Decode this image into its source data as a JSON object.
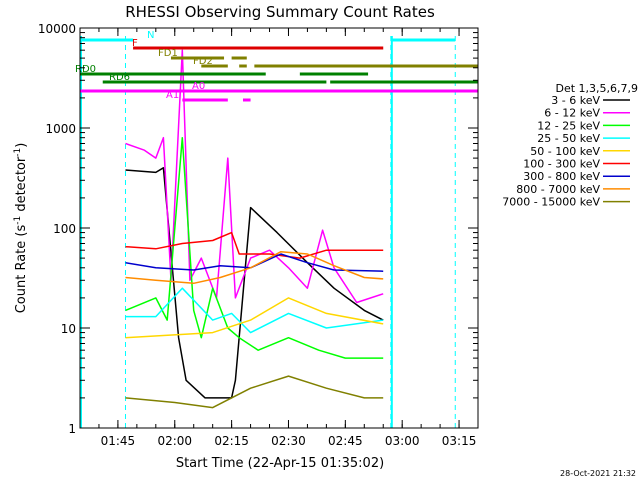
{
  "chart_data": {
    "type": "line",
    "title": "RHESSI Observing Summary Count Rates",
    "xlabel": "Start Time (22-Apr-15 01:35:02)",
    "ylabel_main": "Count Rate (s",
    "ylabel_sup1": "-1",
    "ylabel_mid": " detector",
    "ylabel_sup2": "-1",
    "ylabel_end": ")",
    "y_scale": "log",
    "ylim": [
      1,
      10000
    ],
    "xlim": [
      "01:35",
      "03:20"
    ],
    "x_ticks": [
      "01:45",
      "02:00",
      "02:15",
      "02:30",
      "02:45",
      "03:00",
      "03:15"
    ],
    "y_ticks": [
      "1",
      "10",
      "100",
      "1000",
      "10000"
    ],
    "legend_title": "Det 1,3,5,6,7,9",
    "legend_position": "right",
    "timestamp": "28-Oct-2021 21:32",
    "series": [
      {
        "name": "3 - 6 keV",
        "color": "#000000",
        "points": [
          [
            "01:47",
            "380"
          ],
          [
            "01:55",
            "360"
          ],
          [
            "01:57",
            "400"
          ],
          [
            "02:01",
            "8"
          ],
          [
            "02:03",
            "3"
          ],
          [
            "02:08",
            "2"
          ],
          [
            "02:15",
            "2"
          ],
          [
            "02:16",
            "3"
          ],
          [
            "02:20",
            "160"
          ],
          [
            "02:27",
            "90"
          ],
          [
            "02:35",
            "45"
          ],
          [
            "02:42",
            "25"
          ],
          [
            "02:50",
            "15"
          ],
          [
            "02:55",
            "12"
          ]
        ]
      },
      {
        "name": "6 - 12 keV",
        "color": "#ff00ff",
        "points": [
          [
            "01:47",
            "700"
          ],
          [
            "01:52",
            "600"
          ],
          [
            "01:55",
            "500"
          ],
          [
            "01:57",
            "800"
          ],
          [
            "01:59",
            "30"
          ],
          [
            "02:02",
            "6000"
          ],
          [
            "02:04",
            "30"
          ],
          [
            "02:07",
            "50"
          ],
          [
            "02:11",
            "20"
          ],
          [
            "02:14",
            "500"
          ],
          [
            "02:16",
            "20"
          ],
          [
            "02:20",
            "50"
          ],
          [
            "02:25",
            "60"
          ],
          [
            "02:30",
            "40"
          ],
          [
            "02:35",
            "25"
          ],
          [
            "02:39",
            "95"
          ],
          [
            "02:42",
            "40"
          ],
          [
            "02:48",
            "18"
          ],
          [
            "02:55",
            "22"
          ]
        ]
      },
      {
        "name": "12 - 25 keV",
        "color": "#00ff00",
        "points": [
          [
            "01:47",
            "15"
          ],
          [
            "01:55",
            "20"
          ],
          [
            "01:58",
            "12"
          ],
          [
            "02:02",
            "800"
          ],
          [
            "02:05",
            "15"
          ],
          [
            "02:07",
            "8"
          ],
          [
            "02:10",
            "25"
          ],
          [
            "02:14",
            "10"
          ],
          [
            "02:17",
            "8"
          ],
          [
            "02:22",
            "6"
          ],
          [
            "02:30",
            "8"
          ],
          [
            "02:38",
            "6"
          ],
          [
            "02:45",
            "5"
          ],
          [
            "02:55",
            "5"
          ]
        ]
      },
      {
        "name": "25 - 50 keV",
        "color": "#00ffff",
        "points": [
          [
            "01:47",
            "13"
          ],
          [
            "01:55",
            "13"
          ],
          [
            "02:02",
            "25"
          ],
          [
            "02:10",
            "12"
          ],
          [
            "02:15",
            "14"
          ],
          [
            "02:20",
            "9"
          ],
          [
            "02:30",
            "14"
          ],
          [
            "02:40",
            "10"
          ],
          [
            "02:55",
            "12"
          ]
        ]
      },
      {
        "name": "50 - 100 keV",
        "color": "#ffd700",
        "points": [
          [
            "01:47",
            "8"
          ],
          [
            "02:10",
            "9"
          ],
          [
            "02:20",
            "12"
          ],
          [
            "02:30",
            "20"
          ],
          [
            "02:40",
            "14"
          ],
          [
            "02:55",
            "11"
          ]
        ]
      },
      {
        "name": "100 - 300 keV",
        "color": "#ff0000",
        "points": [
          [
            "01:47",
            "65"
          ],
          [
            "01:55",
            "62"
          ],
          [
            "02:02",
            "70"
          ],
          [
            "02:10",
            "75"
          ],
          [
            "02:15",
            "90"
          ],
          [
            "02:17",
            "55"
          ],
          [
            "02:25",
            "55"
          ],
          [
            "02:33",
            "50"
          ],
          [
            "02:40",
            "60"
          ],
          [
            "02:50",
            "60"
          ],
          [
            "02:55",
            "60"
          ]
        ]
      },
      {
        "name": "300 - 800 keV",
        "color": "#0000cc",
        "points": [
          [
            "01:47",
            "45"
          ],
          [
            "01:55",
            "40"
          ],
          [
            "02:05",
            "38"
          ],
          [
            "02:12",
            "42"
          ],
          [
            "02:20",
            "40"
          ],
          [
            "02:28",
            "55"
          ],
          [
            "02:35",
            "45"
          ],
          [
            "02:42",
            "38"
          ],
          [
            "02:55",
            "37"
          ]
        ]
      },
      {
        "name": "800 - 7000 keV",
        "color": "#ff8c00",
        "points": [
          [
            "01:47",
            "32"
          ],
          [
            "01:55",
            "30"
          ],
          [
            "02:05",
            "28"
          ],
          [
            "02:12",
            "32"
          ],
          [
            "02:20",
            "40"
          ],
          [
            "02:28",
            "58"
          ],
          [
            "02:35",
            "55"
          ],
          [
            "02:42",
            "42"
          ],
          [
            "02:50",
            "32"
          ],
          [
            "02:55",
            "31"
          ]
        ]
      },
      {
        "name": "7000 - 15000 keV",
        "color": "#808000",
        "points": [
          [
            "01:47",
            "2"
          ],
          [
            "02:00",
            "1.8"
          ],
          [
            "02:10",
            "1.6"
          ],
          [
            "02:20",
            "2.5"
          ],
          [
            "02:30",
            "3.3"
          ],
          [
            "02:40",
            "2.5"
          ],
          [
            "02:50",
            "2"
          ],
          [
            "02:55",
            "2"
          ]
        ]
      }
    ],
    "flags": [
      {
        "label": "N",
        "color": "#00ffff",
        "segments": [
          [
            "01:35",
            "01:49"
          ],
          [
            "02:57",
            "03:14"
          ]
        ]
      },
      {
        "label": "F",
        "color": "#dd0000",
        "segments": [
          [
            "01:49",
            "02:55"
          ]
        ]
      },
      {
        "label": "FD1",
        "color": "#808000",
        "segments": [
          [
            "01:59",
            "02:13"
          ],
          [
            "02:15",
            "02:19"
          ]
        ]
      },
      {
        "label": "FD2",
        "color": "#808000",
        "segments": [
          [
            "02:07",
            "02:14"
          ],
          [
            "02:17",
            "02:19"
          ],
          [
            "02:21",
            "03:20"
          ]
        ]
      },
      {
        "label": "RD0",
        "color": "#008000",
        "segments": [
          [
            "01:35",
            "02:24"
          ],
          [
            "02:33",
            "02:51"
          ]
        ]
      },
      {
        "label": "RD6",
        "color": "#008000",
        "segments": [
          [
            "01:41",
            "02:40"
          ],
          [
            "02:41",
            "03:20"
          ]
        ]
      },
      {
        "label": "A0",
        "color": "#ff00ff",
        "segments": [
          [
            "01:35",
            "03:20"
          ]
        ]
      },
      {
        "label": "A1",
        "color": "#ff00ff",
        "segments": [
          [
            "02:02",
            "02:14"
          ],
          [
            "02:18",
            "02:20"
          ]
        ]
      }
    ],
    "night_boundaries": [
      "01:47",
      "02:57",
      "03:14"
    ],
    "night_solid": [
      "01:35",
      "02:57"
    ]
  }
}
